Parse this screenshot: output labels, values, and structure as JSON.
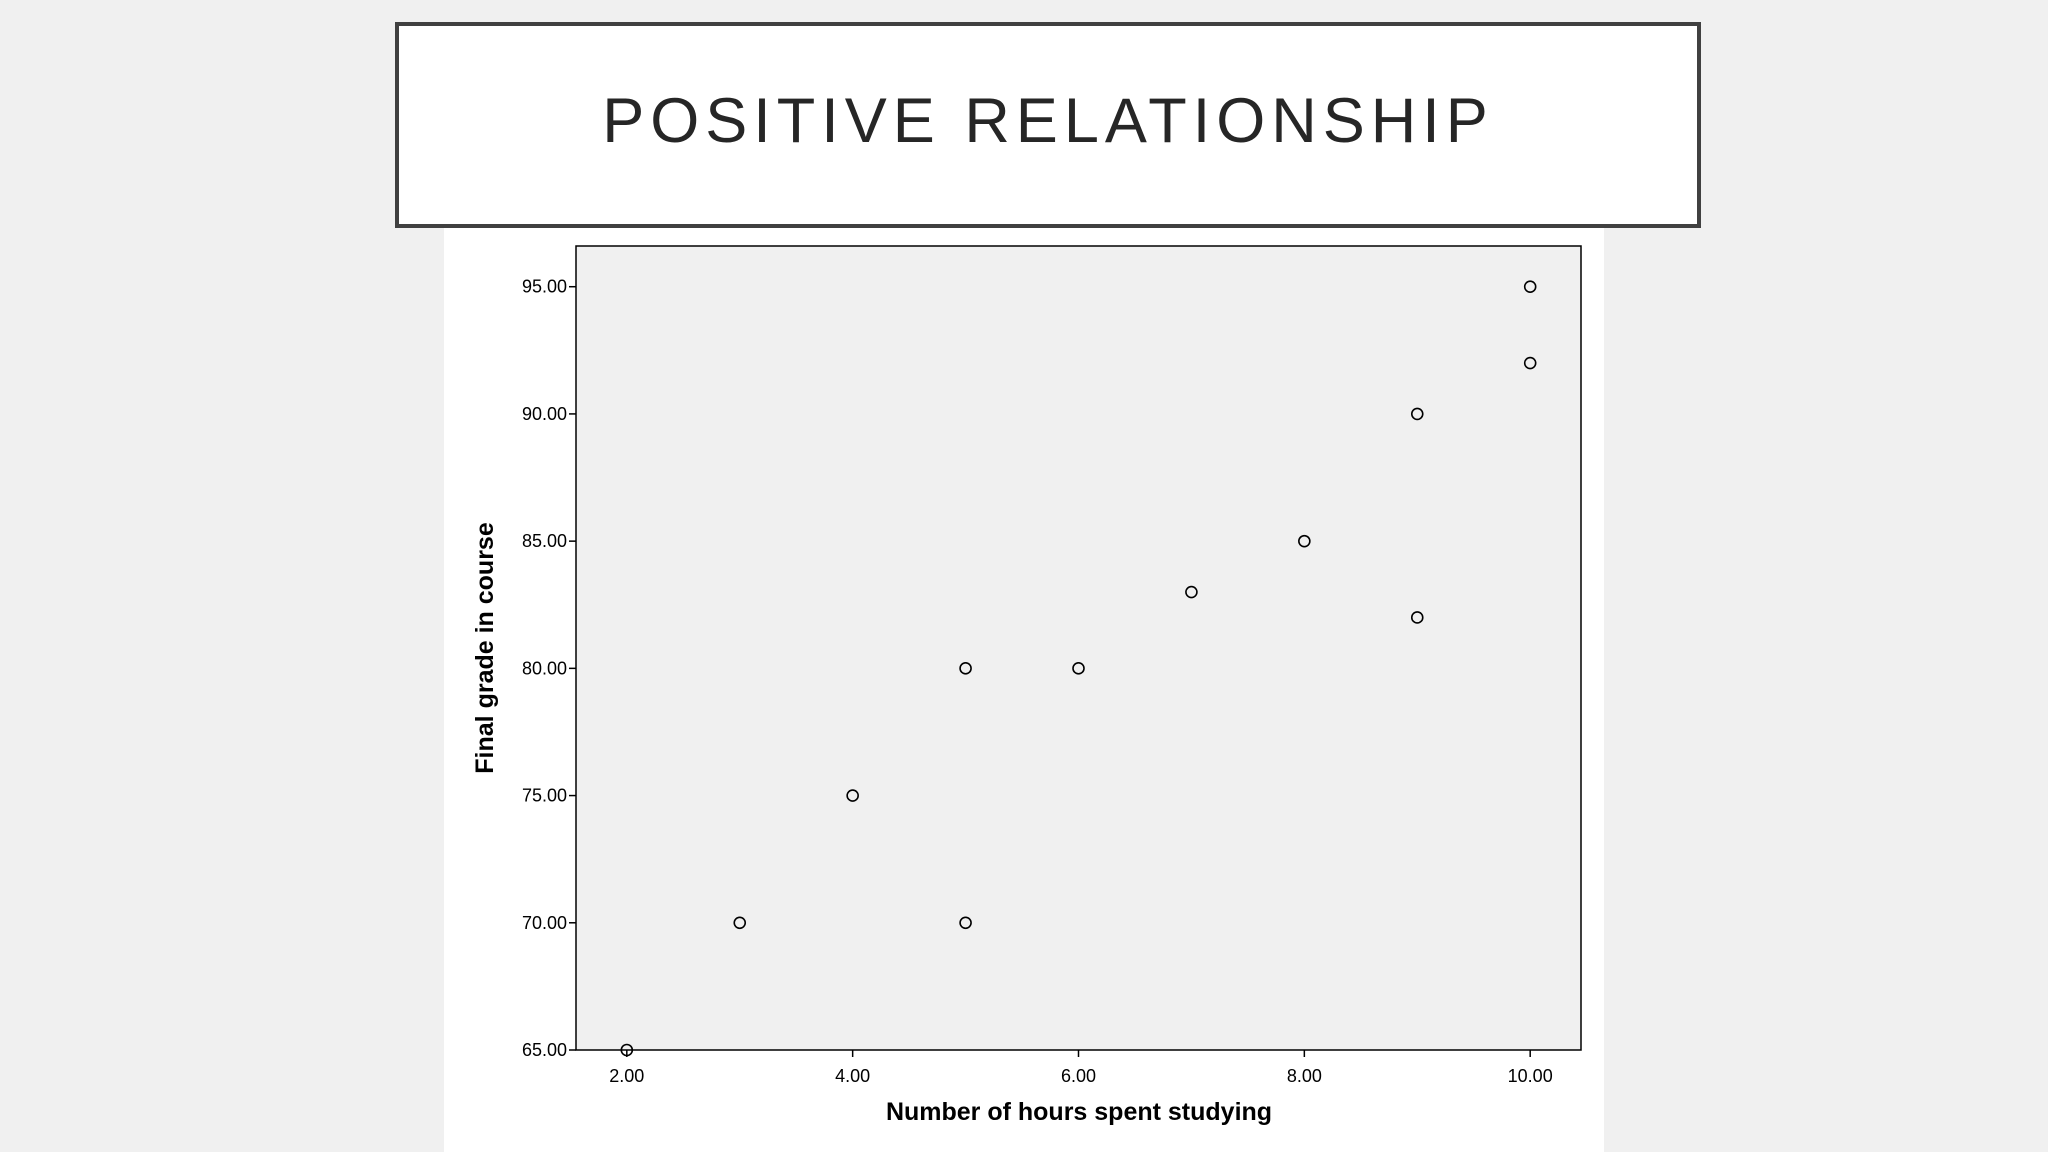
{
  "slide": {
    "title": "POSITIVE RELATIONSHIP"
  },
  "chart_data": {
    "type": "scatter",
    "title": "",
    "xlabel": "Number of hours spent studying",
    "ylabel": "Final grade in course",
    "xlim": [
      1.55,
      10.45
    ],
    "ylim": [
      65,
      96.6
    ],
    "x_ticks": [
      "2.00",
      "4.00",
      "6.00",
      "8.00",
      "10.00"
    ],
    "y_ticks": [
      "65.00",
      "70.00",
      "75.00",
      "80.00",
      "85.00",
      "90.00",
      "95.00"
    ],
    "x_tick_values": [
      2,
      4,
      6,
      8,
      10
    ],
    "y_tick_values": [
      65,
      70,
      75,
      80,
      85,
      90,
      95
    ],
    "grid": false,
    "colors": {
      "plot_background": "#f0f0f0",
      "marker_stroke": "#000000",
      "axis": "#000000"
    },
    "series": [
      {
        "x": [
          2,
          3,
          4,
          5,
          5,
          6,
          7,
          8,
          9,
          9,
          10,
          10
        ],
        "y": [
          65,
          70,
          75,
          70,
          80,
          80,
          83,
          85,
          82,
          90,
          92,
          95
        ]
      }
    ]
  }
}
